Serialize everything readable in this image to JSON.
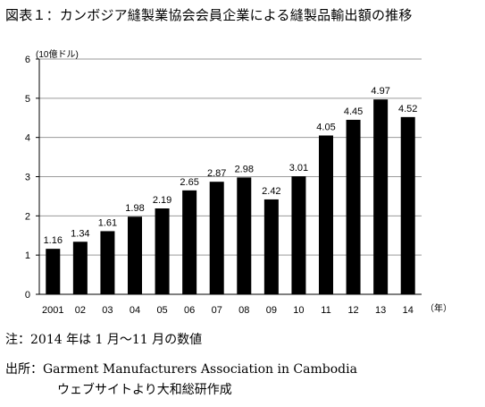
{
  "title": "図表１：カンボジア縫製業協会会員企業による縫製品輸出額の推移",
  "chart_data": {
    "type": "bar",
    "unit_label": "(10億ドル)",
    "x_unit_label": "（年）",
    "categories": [
      "2001",
      "02",
      "03",
      "04",
      "05",
      "06",
      "07",
      "08",
      "09",
      "10",
      "11",
      "12",
      "13",
      "14"
    ],
    "values": [
      1.16,
      1.34,
      1.61,
      1.98,
      2.19,
      2.65,
      2.87,
      2.98,
      2.42,
      3.01,
      4.05,
      4.45,
      4.97,
      4.52
    ],
    "data_labels": [
      "1.16",
      "1.34",
      "1.61",
      "1.98",
      "2.19",
      "2.65",
      "2.87",
      "2.98",
      "2.42",
      "3.01",
      "4.05",
      "4.45",
      "4.97",
      "4.52"
    ],
    "y_ticks": [
      0,
      1,
      2,
      3,
      4,
      5,
      6
    ],
    "ylim": [
      0,
      6
    ],
    "grid": true,
    "bar_color": "#000000"
  },
  "notes": {
    "note": "注：2014 年は 1 月～11 月の数値",
    "source": "出所：Garment Manufacturers Association in Cambodia",
    "source_cont": "ウェブサイトより大和総研作成"
  }
}
